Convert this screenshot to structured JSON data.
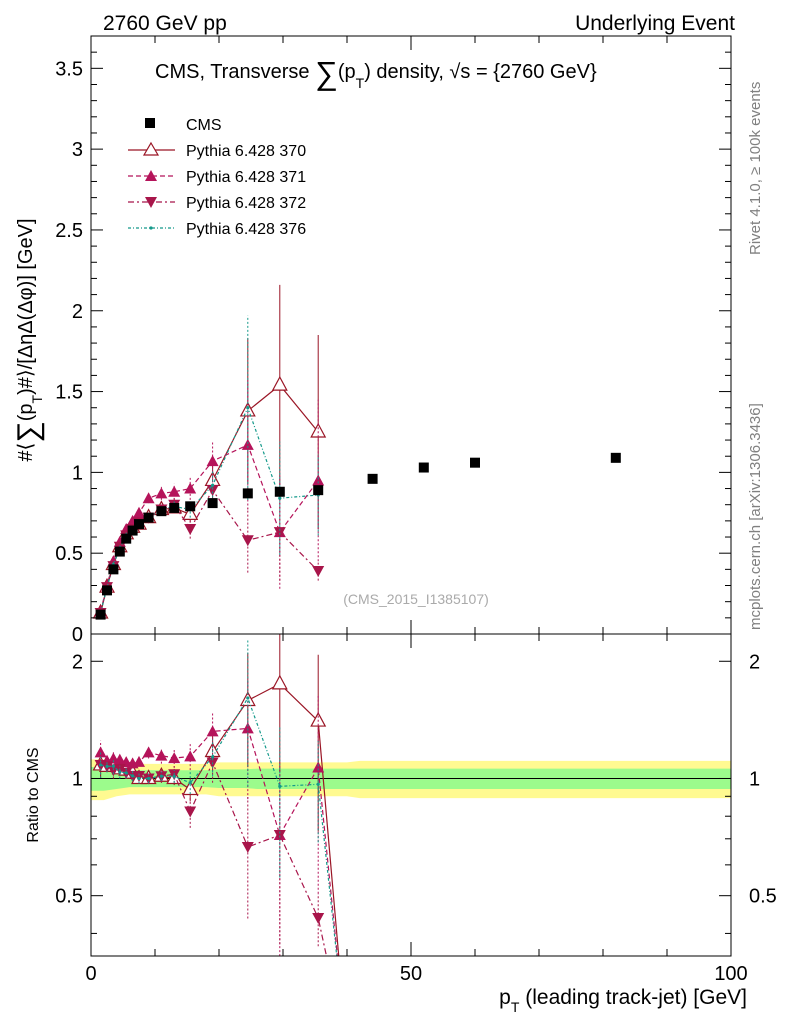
{
  "header": {
    "left": "2760 GeV pp",
    "right": "Underlying Event"
  },
  "side": {
    "rivet": "Rivet 4.1.0, ≥ 100k events",
    "mcplots": "mcplots.cern.ch [arXiv:1306.3436]"
  },
  "chart_data": {
    "type": "scatter",
    "title_prefix": "CMS, Transverse ",
    "title_sum": "∑",
    "title_p": "(p",
    "title_sub": "T",
    "title_suffix": ") density, √s = {2760 GeV}",
    "ylabel_parts": [
      "#⟨",
      "∑",
      "(p",
      "T",
      ")#⟩/[ΔηΔ(Δφ)] [GeV]"
    ],
    "ratio_ylabel": "Ratio to CMS",
    "xlabel_p": "p",
    "xlabel_sub": "T",
    "xlabel_rest": " (leading track-jet) [GeV]",
    "watermark": "(CMS_2015_I1385107)",
    "xlim": [
      0,
      100
    ],
    "ylim": [
      0,
      3.7
    ],
    "ratio_ylim": [
      0.35,
      2.35
    ],
    "x_ticks": [
      "0",
      "50",
      "100"
    ],
    "x_tick_values": [
      0,
      50,
      100
    ],
    "y_ticks": [
      "0",
      "0.5",
      "1",
      "1.5",
      "2",
      "2.5",
      "3",
      "3.5"
    ],
    "y_tick_values": [
      0,
      0.5,
      1,
      1.5,
      2,
      2.5,
      3,
      3.5
    ],
    "ratio_ticks": [
      "0.5",
      "1",
      "2"
    ],
    "ratio_tick_values": [
      0.5,
      1,
      2
    ],
    "legend": [
      "CMS",
      "Pythia 6.428 370",
      "Pythia 6.428 371",
      "Pythia 6.428 372",
      "Pythia 6.428 376"
    ],
    "colors": {
      "data": "#000000",
      "s370": "#9a1525",
      "s371": "#b5135a",
      "s372": "#a8154a",
      "s376": "#14998a",
      "band_outer": "#fffa91",
      "band_inner": "#9cfb8c"
    },
    "data": {
      "name": "CMS",
      "x": [
        1.5,
        2.5,
        3.5,
        4.5,
        5.5,
        6.5,
        7.5,
        9.0,
        11.0,
        13.0,
        15.5,
        19.0,
        24.5,
        29.5,
        35.5,
        44.0,
        52.0,
        60.0,
        82.0
      ],
      "y": [
        0.12,
        0.27,
        0.4,
        0.51,
        0.59,
        0.64,
        0.68,
        0.72,
        0.76,
        0.78,
        0.79,
        0.81,
        0.87,
        0.88,
        0.89,
        0.96,
        1.03,
        1.06,
        1.09
      ]
    },
    "band_x": [
      0,
      2,
      4,
      6,
      8,
      10,
      12,
      14,
      16,
      18,
      20,
      22,
      24,
      26,
      28,
      30,
      32,
      34,
      36,
      38,
      40,
      42,
      44,
      48,
      56,
      64,
      100
    ],
    "band_inner": [
      0.07,
      0.07,
      0.06,
      0.05,
      0.05,
      0.05,
      0.05,
      0.05,
      0.05,
      0.05,
      0.055,
      0.055,
      0.055,
      0.06,
      0.06,
      0.06,
      0.06,
      0.06,
      0.06,
      0.06,
      0.06,
      0.06,
      0.06,
      0.06,
      0.06,
      0.06,
      0.06
    ],
    "band_outer": [
      0.12,
      0.12,
      0.1,
      0.09,
      0.09,
      0.09,
      0.09,
      0.09,
      0.09,
      0.09,
      0.1,
      0.1,
      0.1,
      0.1,
      0.1,
      0.1,
      0.1,
      0.1,
      0.1,
      0.1,
      0.1,
      0.11,
      0.11,
      0.11,
      0.11,
      0.11,
      0.11
    ],
    "series": [
      {
        "name": "Pythia 6.428 370",
        "key": "s370",
        "marker": "triangle-open",
        "dash": "",
        "x": [
          1.5,
          2.5,
          3.5,
          4.5,
          5.5,
          6.5,
          7.5,
          9.0,
          11.0,
          13.0,
          15.5,
          19.0,
          24.5,
          29.5,
          35.5
        ],
        "y": [
          0.13,
          0.29,
          0.43,
          0.54,
          0.62,
          0.66,
          0.68,
          0.72,
          0.77,
          0.78,
          0.74,
          0.95,
          1.38,
          1.54,
          1.25
        ],
        "err": [
          0.01,
          0.01,
          0.02,
          0.02,
          0.02,
          0.02,
          0.02,
          0.02,
          0.02,
          0.03,
          0.05,
          0.1,
          0.45,
          0.62,
          0.6
        ],
        "ratio_tail": [
          40,
          0.0
        ]
      },
      {
        "name": "Pythia 6.428 371",
        "key": "s371",
        "marker": "triangle-up",
        "dash": "5,3",
        "x": [
          1.5,
          2.5,
          3.5,
          4.5,
          5.5,
          6.5,
          7.5,
          9.0,
          11.0,
          13.0,
          15.5,
          19.0,
          24.5,
          29.5,
          35.5
        ],
        "y": [
          0.14,
          0.3,
          0.45,
          0.57,
          0.65,
          0.7,
          0.75,
          0.84,
          0.87,
          0.88,
          0.9,
          1.07,
          1.17,
          0.63,
          0.95
        ],
        "err": [
          0.01,
          0.01,
          0.02,
          0.02,
          0.02,
          0.02,
          0.02,
          0.03,
          0.04,
          0.05,
          0.07,
          0.12,
          0.4,
          0.35,
          0.5
        ],
        "ratio_tail": [
          40,
          0.0
        ]
      },
      {
        "name": "Pythia 6.428 372",
        "key": "s372",
        "marker": "triangle-down",
        "dash": "6,3,2,3",
        "x": [
          1.5,
          2.5,
          3.5,
          4.5,
          5.5,
          6.5,
          7.5,
          9.0,
          11.0,
          13.0,
          15.5,
          19.0,
          24.5,
          29.5,
          35.5
        ],
        "y": [
          0.13,
          0.29,
          0.42,
          0.54,
          0.61,
          0.65,
          0.69,
          0.72,
          0.77,
          0.8,
          0.65,
          0.89,
          0.58,
          0.63,
          0.39
        ],
        "err": [
          0.01,
          0.01,
          0.02,
          0.02,
          0.02,
          0.02,
          0.02,
          0.02,
          0.03,
          0.04,
          0.06,
          0.1,
          0.2,
          0.3,
          0.06
        ],
        "ratio_tail": [
          40,
          0.0
        ]
      },
      {
        "name": "Pythia 6.428 376",
        "key": "s376",
        "marker": "dot",
        "dash": "3,2,1,2",
        "x": [
          1.5,
          2.5,
          3.5,
          4.5,
          5.5,
          6.5,
          7.5,
          9.0,
          11.0,
          13.0,
          15.5,
          19.0,
          24.5,
          29.5,
          35.5
        ],
        "y": [
          0.13,
          0.29,
          0.43,
          0.53,
          0.61,
          0.65,
          0.68,
          0.72,
          0.77,
          0.79,
          0.77,
          0.92,
          1.4,
          0.84,
          0.86
        ],
        "err": [
          0.01,
          0.01,
          0.02,
          0.02,
          0.02,
          0.02,
          0.02,
          0.02,
          0.02,
          0.03,
          0.05,
          0.1,
          0.57,
          0.35,
          0.25
        ],
        "ratio_tail": [
          40,
          0.0
        ]
      }
    ]
  }
}
